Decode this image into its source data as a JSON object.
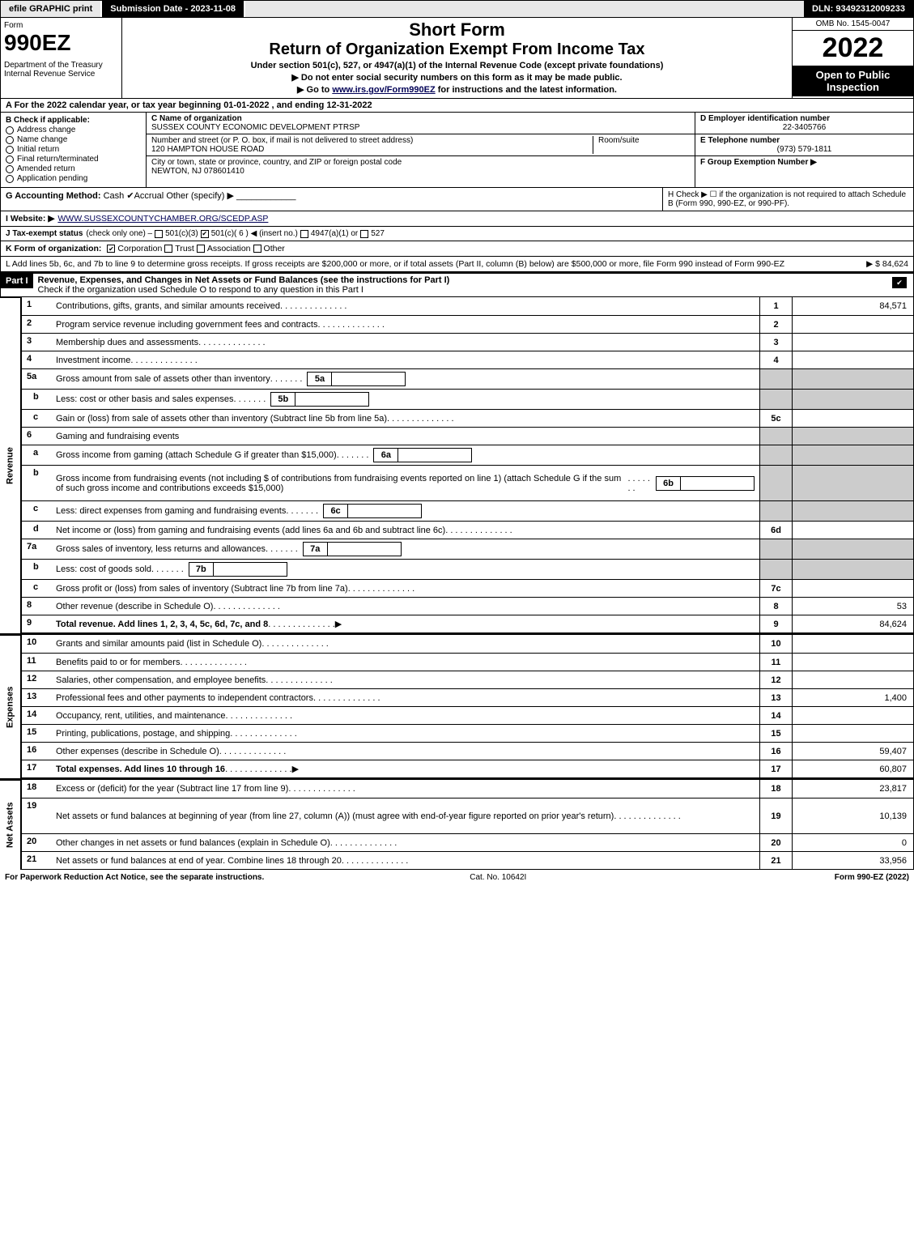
{
  "topbar": {
    "efile": "efile GRAPHIC print",
    "sub_date_label": "Submission Date - 2023-11-08",
    "dln": "DLN: 93492312009233"
  },
  "header": {
    "form_word": "Form",
    "form_num": "990EZ",
    "dept": "Department of the Treasury\nInternal Revenue Service",
    "short": "Short Form",
    "title": "Return of Organization Exempt From Income Tax",
    "sub1": "Under section 501(c), 527, or 4947(a)(1) of the Internal Revenue Code (except private foundations)",
    "sub2": "▶ Do not enter social security numbers on this form as it may be made public.",
    "sub3_pre": "▶ Go to ",
    "sub3_link": "www.irs.gov/Form990EZ",
    "sub3_post": " for instructions and the latest information.",
    "omb": "OMB No. 1545-0047",
    "year": "2022",
    "open": "Open to Public Inspection"
  },
  "lineA": "A  For the 2022 calendar year, or tax year beginning 01-01-2022 , and ending 12-31-2022",
  "blockB": {
    "label": "B  Check if applicable:",
    "opts": [
      "Address change",
      "Name change",
      "Initial return",
      "Final return/terminated",
      "Amended return",
      "Application pending"
    ]
  },
  "blockC": {
    "name_lbl": "C Name of organization",
    "name": "SUSSEX COUNTY ECONOMIC DEVELOPMENT PTRSP",
    "street_lbl": "Number and street (or P. O. box, if mail is not delivered to street address)",
    "room_lbl": "Room/suite",
    "street": "120 HAMPTON HOUSE ROAD",
    "city_lbl": "City or town, state or province, country, and ZIP or foreign postal code",
    "city": "NEWTON, NJ  078601410"
  },
  "blockD": {
    "ein_lbl": "D Employer identification number",
    "ein": "22-3405766",
    "tel_lbl": "E Telephone number",
    "tel": "(973) 579-1811",
    "grp_lbl": "F Group Exemption Number  ▶"
  },
  "lineG": {
    "lbl": "G Accounting Method:",
    "cash": "Cash",
    "accrual": "Accrual",
    "other": "Other (specify) ▶"
  },
  "lineH": "H  Check ▶  ☐  if the organization is not required to attach Schedule B (Form 990, 990-EZ, or 990-PF).",
  "lineI": {
    "lbl": "I Website: ▶",
    "url": "WWW.SUSSEXCOUNTYCHAMBER.ORG/SCEDP.ASP"
  },
  "lineJ": {
    "lbl": "J Tax-exempt status",
    "note": "(check only one) –",
    "o1": "501(c)(3)",
    "o2": "501(c)( 6 ) ◀ (insert no.)",
    "o3": "4947(a)(1) or",
    "o4": "527"
  },
  "lineK": {
    "lbl": "K Form of organization:",
    "o1": "Corporation",
    "o2": "Trust",
    "o3": "Association",
    "o4": "Other"
  },
  "lineL": {
    "text": "L Add lines 5b, 6c, and 7b to line 9 to determine gross receipts. If gross receipts are $200,000 or more, or if total assets (Part II, column (B) below) are $500,000 or more, file Form 990 instead of Form 990-EZ",
    "amt": "▶ $ 84,624"
  },
  "part1": {
    "label": "Part I",
    "title": "Revenue, Expenses, and Changes in Net Assets or Fund Balances (see the instructions for Part I)",
    "sub": "Check if the organization used Schedule O to respond to any question in this Part I"
  },
  "sections": {
    "revenue": "Revenue",
    "expenses": "Expenses",
    "netassets": "Net Assets"
  },
  "rows": [
    {
      "n": "1",
      "t": "Contributions, gifts, grants, and similar amounts received",
      "rn": "1",
      "v": "84,571"
    },
    {
      "n": "2",
      "t": "Program service revenue including government fees and contracts",
      "rn": "2",
      "v": ""
    },
    {
      "n": "3",
      "t": "Membership dues and assessments",
      "rn": "3",
      "v": ""
    },
    {
      "n": "4",
      "t": "Investment income",
      "rn": "4",
      "v": ""
    },
    {
      "n": "5a",
      "t": "Gross amount from sale of assets other than inventory",
      "ib": "5a",
      "grey": true
    },
    {
      "n": "b",
      "t": "Less: cost or other basis and sales expenses",
      "ib": "5b",
      "grey": true
    },
    {
      "n": "c",
      "t": "Gain or (loss) from sale of assets other than inventory (Subtract line 5b from line 5a)",
      "rn": "5c",
      "v": ""
    },
    {
      "n": "6",
      "t": "Gaming and fundraising events",
      "grey": true,
      "noval": true
    },
    {
      "n": "a",
      "t": "Gross income from gaming (attach Schedule G if greater than $15,000)",
      "ib": "6a",
      "grey": true
    },
    {
      "n": "b",
      "t": "Gross income from fundraising events (not including $                 of contributions from fundraising events reported on line 1) (attach Schedule G if the sum of such gross income and contributions exceeds $15,000)",
      "ib": "6b",
      "grey": true,
      "tall": true
    },
    {
      "n": "c",
      "t": "Less: direct expenses from gaming and fundraising events",
      "ib": "6c",
      "grey": true
    },
    {
      "n": "d",
      "t": "Net income or (loss) from gaming and fundraising events (add lines 6a and 6b and subtract line 6c)",
      "rn": "6d",
      "v": ""
    },
    {
      "n": "7a",
      "t": "Gross sales of inventory, less returns and allowances",
      "ib": "7a",
      "grey": true
    },
    {
      "n": "b",
      "t": "Less: cost of goods sold",
      "ib": "7b",
      "grey": true
    },
    {
      "n": "c",
      "t": "Gross profit or (loss) from sales of inventory (Subtract line 7b from line 7a)",
      "rn": "7c",
      "v": ""
    },
    {
      "n": "8",
      "t": "Other revenue (describe in Schedule O)",
      "rn": "8",
      "v": "53"
    },
    {
      "n": "9",
      "t": "Total revenue. Add lines 1, 2, 3, 4, 5c, 6d, 7c, and 8",
      "rn": "9",
      "v": "84,624",
      "bold": true,
      "arrow": true
    }
  ],
  "exp_rows": [
    {
      "n": "10",
      "t": "Grants and similar amounts paid (list in Schedule O)",
      "rn": "10",
      "v": ""
    },
    {
      "n": "11",
      "t": "Benefits paid to or for members",
      "rn": "11",
      "v": ""
    },
    {
      "n": "12",
      "t": "Salaries, other compensation, and employee benefits",
      "rn": "12",
      "v": ""
    },
    {
      "n": "13",
      "t": "Professional fees and other payments to independent contractors",
      "rn": "13",
      "v": "1,400"
    },
    {
      "n": "14",
      "t": "Occupancy, rent, utilities, and maintenance",
      "rn": "14",
      "v": ""
    },
    {
      "n": "15",
      "t": "Printing, publications, postage, and shipping",
      "rn": "15",
      "v": ""
    },
    {
      "n": "16",
      "t": "Other expenses (describe in Schedule O)",
      "rn": "16",
      "v": "59,407"
    },
    {
      "n": "17",
      "t": "Total expenses. Add lines 10 through 16",
      "rn": "17",
      "v": "60,807",
      "bold": true,
      "arrow": true
    }
  ],
  "na_rows": [
    {
      "n": "18",
      "t": "Excess or (deficit) for the year (Subtract line 17 from line 9)",
      "rn": "18",
      "v": "23,817"
    },
    {
      "n": "19",
      "t": "Net assets or fund balances at beginning of year (from line 27, column (A)) (must agree with end-of-year figure reported on prior year's return)",
      "rn": "19",
      "v": "10,139",
      "tall": true
    },
    {
      "n": "20",
      "t": "Other changes in net assets or fund balances (explain in Schedule O)",
      "rn": "20",
      "v": "0"
    },
    {
      "n": "21",
      "t": "Net assets or fund balances at end of year. Combine lines 18 through 20",
      "rn": "21",
      "v": "33,956"
    }
  ],
  "footer": {
    "left": "For Paperwork Reduction Act Notice, see the separate instructions.",
    "center": "Cat. No. 10642I",
    "right": "Form 990-EZ (2022)"
  }
}
